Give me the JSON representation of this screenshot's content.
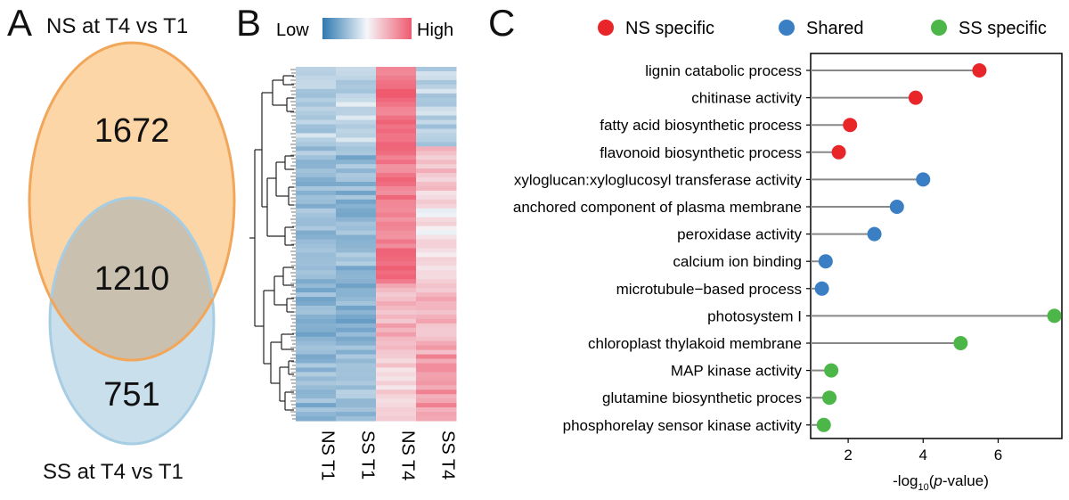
{
  "panels": {
    "a": "A",
    "b": "B",
    "c": "C"
  },
  "venn": {
    "top_title": "NS at T4 vs T1",
    "bottom_title": "SS at T4 vs T1",
    "ns_only": "1672",
    "shared": "1210",
    "ss_only": "751",
    "colors": {
      "ns": "#fdd6a8",
      "ns_stroke": "#f2a65a",
      "ss": "#c9dfeb",
      "ss_stroke": "#a6cde3",
      "overlap": "#c9c0b0"
    }
  },
  "heatmap": {
    "legend_low": "Low",
    "legend_high": "High",
    "columns": [
      "NS T1",
      "SS T1",
      "NS T4",
      "SS T4"
    ],
    "colors": {
      "low": "#2f79b0",
      "mid": "#f5f7f9",
      "high": "#ef5a6f"
    }
  },
  "chart_data": {
    "type": "lollipop",
    "xlabel": "-log10(p-value)",
    "xlabel_parts": {
      "prefix": "-log",
      "sub": "10",
      "open": "(",
      "italic": "p",
      "suffix": "-value)"
    },
    "xlim": [
      1.0,
      7.7
    ],
    "xticks": [
      2,
      4,
      6
    ],
    "baseline": 1.0,
    "legend": [
      {
        "name": "NS specific",
        "color": "#e8262a"
      },
      {
        "name": "Shared",
        "color": "#3a7fc4"
      },
      {
        "name": "SS specific",
        "color": "#4cb748"
      }
    ],
    "categories": [
      "lignin catabolic process",
      "chitinase activity",
      "fatty acid biosynthetic process",
      "flavonoid biosynthetic process",
      "xyloglucan:xyloglucosyl transferase activity",
      "anchored component of plasma membrane",
      "peroxidase activity",
      "calcium ion binding",
      "microtubule−based process",
      "photosystem I",
      "chloroplast thylakoid membrane",
      "MAP kinase activity",
      "glutamine biosynthetic proces",
      "phosphorelay sensor kinase activity"
    ],
    "values": [
      5.5,
      3.8,
      2.05,
      1.75,
      4.0,
      3.3,
      2.7,
      1.4,
      1.3,
      7.5,
      5.0,
      1.55,
      1.5,
      1.35
    ],
    "groups": [
      "NS specific",
      "NS specific",
      "NS specific",
      "NS specific",
      "Shared",
      "Shared",
      "Shared",
      "Shared",
      "Shared",
      "SS specific",
      "SS specific",
      "SS specific",
      "SS specific",
      "SS specific"
    ]
  }
}
